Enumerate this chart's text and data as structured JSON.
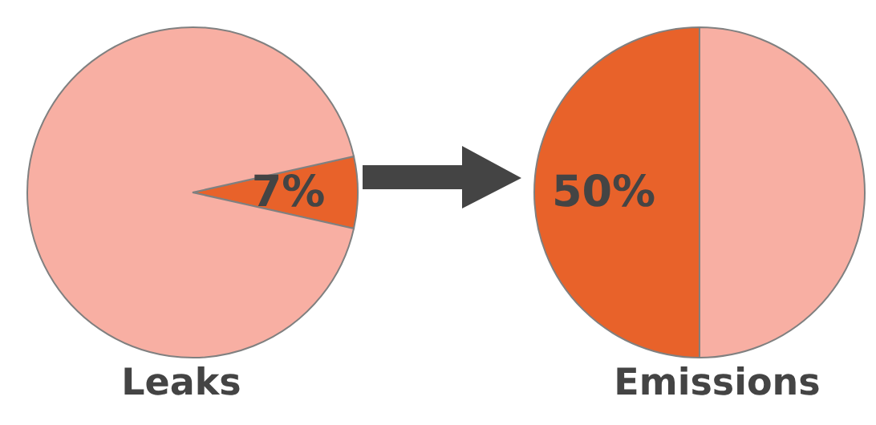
{
  "chart_data": [
    {
      "type": "pie",
      "title": "Leaks",
      "categories": [
        null,
        null
      ],
      "values": [
        7,
        93
      ],
      "colors": [
        "#e8622a",
        "#f8afa3"
      ],
      "value_labels": [
        "7%",
        null
      ]
    },
    {
      "type": "pie",
      "title": "Emissions",
      "categories": [
        null,
        null
      ],
      "values": [
        50,
        50
      ],
      "colors": [
        "#e8622a",
        "#f8afa3"
      ],
      "value_labels": [
        "50%",
        null
      ]
    }
  ]
}
